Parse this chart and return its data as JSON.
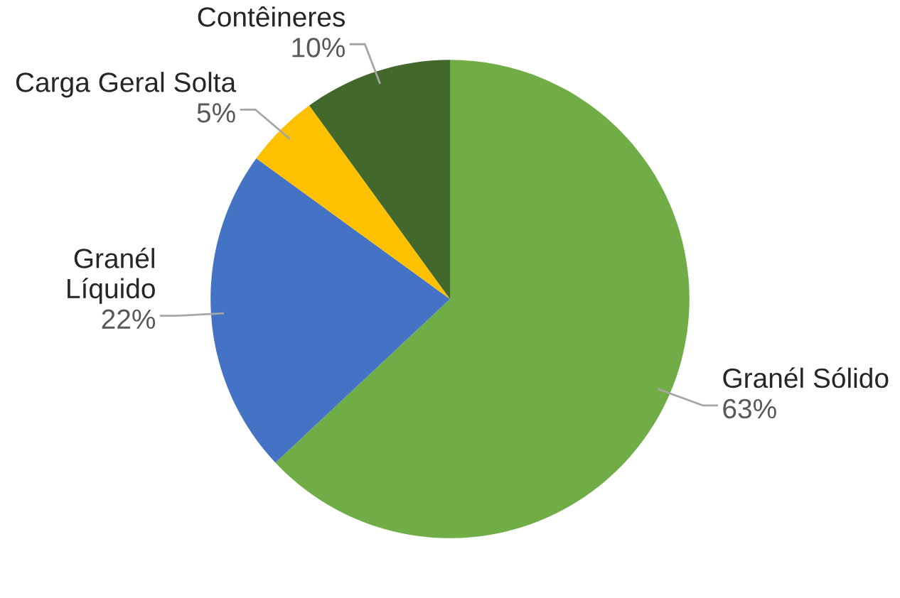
{
  "chart_data": {
    "type": "pie",
    "categories": [
      "Granél Sólido",
      "Granél Líquido",
      "Carga Geral Solta",
      "Contêineres"
    ],
    "values": [
      63,
      22,
      5,
      10
    ],
    "colors": [
      "#70ad47",
      "#4472c4",
      "#ffc000",
      "#43682b"
    ],
    "value_labels": [
      "63%",
      "22%",
      "5%",
      "10%"
    ],
    "legend": false
  }
}
